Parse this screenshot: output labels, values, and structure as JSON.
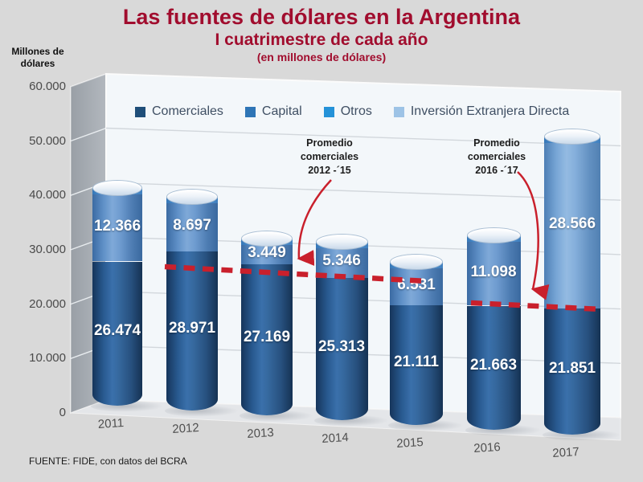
{
  "title": "Las fuentes de dólares en la Argentina",
  "subtitle": "I cuatrimestre de cada año",
  "units_note": "(en millones de dólares)",
  "y_axis_title": {
    "line1": "Millones de",
    "line2": "dólares"
  },
  "source": "FUENTE: FIDE, con datos del BCRA",
  "colors": {
    "title_red": "#A10D2E",
    "accent_red": "#C9202C",
    "comerciales": "#1F4E79",
    "capital": "#2E75B6",
    "otros": "#2492D8",
    "ied": "#9DC3E6"
  },
  "legend": [
    {
      "label": "Comerciales",
      "color_key": "comerciales"
    },
    {
      "label": "Capital",
      "color_key": "capital"
    },
    {
      "label": "Otros",
      "color_key": "otros"
    },
    {
      "label": "Inversión Extranjera Directa",
      "color_key": "ied"
    }
  ],
  "annotations": [
    {
      "line1": "Promedio",
      "line2": "comerciales",
      "line3": "2012 -´15"
    },
    {
      "line1": "Promedio",
      "line2": "comerciales",
      "line3": "2016 -´17"
    }
  ],
  "chart_data": {
    "type": "bar",
    "subtype": "3d-stacked-cylinders",
    "title": "Las fuentes de dólares en la Argentina — I cuatrimestre de cada año (en millones de dólares)",
    "categories": [
      "2011",
      "2012",
      "2013",
      "2014",
      "2015",
      "2016",
      "2017"
    ],
    "series": [
      {
        "name": "Comerciales",
        "color_key": "comerciales",
        "values": [
          26474,
          28971,
          27169,
          25313,
          21111,
          21663,
          21851
        ],
        "labels": [
          "26.474",
          "28.971",
          "27.169",
          "25.313",
          "21.111",
          "21.663",
          "21.851"
        ]
      },
      {
        "name": "Segmento superior (Capital / Inversión Extranjera Directa)",
        "color_keys": [
          "capital",
          "capital",
          "capital",
          "capital",
          "capital",
          "capital",
          "ied"
        ],
        "values": [
          12366,
          8697,
          3449,
          5346,
          6531,
          11098,
          28566
        ],
        "labels": [
          "12.366",
          "8.697",
          "3.449",
          "5.346",
          "6.531",
          "11.098",
          "28.566"
        ]
      }
    ],
    "ylabel": "Millones de dólares",
    "ylim": [
      0,
      60000
    ],
    "y_ticks": [
      "0",
      "10.000",
      "20.000",
      "30.000",
      "40.000",
      "50.000",
      "60.000"
    ],
    "grid": true,
    "legend_position": "top-inside",
    "average_lines": [
      {
        "label": "Promedio comerciales 2012 -´15",
        "span_categories": [
          "2012",
          "2015"
        ],
        "style": "red-dashed"
      },
      {
        "label": "Promedio comerciales 2016 -´17",
        "span_categories": [
          "2016",
          "2017"
        ],
        "style": "red-dashed"
      }
    ]
  }
}
